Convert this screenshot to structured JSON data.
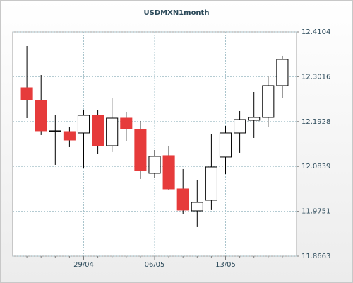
{
  "chart_data": {
    "type": "candlestick",
    "title": "USDMXN1month",
    "categories": [
      null,
      null,
      null,
      null,
      "29/04",
      null,
      null,
      null,
      null,
      "06/05",
      null,
      null,
      null,
      null,
      "13/05",
      null,
      null,
      null,
      null
    ],
    "open": [
      12.2748,
      12.244,
      12.1684,
      12.1684,
      12.165,
      12.2079,
      12.1341,
      12.201,
      12.1736,
      12.0672,
      12.1101,
      12.0294,
      11.9762,
      12.002,
      12.1067,
      12.165,
      12.1959,
      12.2028,
      12.28
    ],
    "high": [
      12.3761,
      12.3057,
      12.2096,
      12.1787,
      12.2216,
      12.2216,
      12.2491,
      12.2165,
      12.1942,
      12.1238,
      12.1341,
      12.0775,
      12.0517,
      12.1616,
      12.1822,
      12.2182,
      12.2645,
      12.3023,
      12.3521
    ],
    "low": [
      12.201,
      12.1599,
      12.0878,
      12.1307,
      12.0792,
      12.1152,
      12.1187,
      12.1444,
      12.0535,
      12.0552,
      12.026,
      11.9677,
      11.9368,
      11.978,
      12.0655,
      12.117,
      12.153,
      12.1804,
      12.2491
    ],
    "close": [
      12.2457,
      12.1702,
      12.1702,
      12.1478,
      12.2079,
      12.1341,
      12.201,
      12.1753,
      12.074,
      12.1084,
      12.0294,
      11.978,
      11.9968,
      12.0826,
      12.165,
      12.1976,
      12.2028,
      12.28,
      12.3435
    ],
    "up_color": "#ffffff",
    "down_color": "#e63b3b",
    "ylim": [
      11.8663,
      12.4104
    ],
    "yticks": [
      11.8663,
      11.9751,
      12.0839,
      12.1928,
      12.3016,
      12.4104
    ],
    "grid": true
  }
}
